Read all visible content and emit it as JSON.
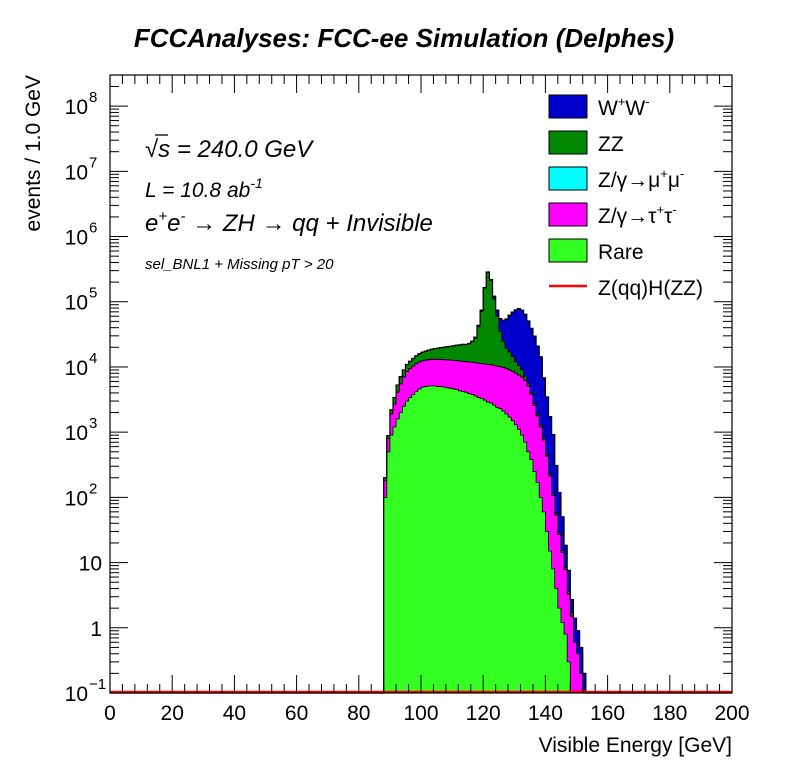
{
  "chart_data": {
    "type": "area",
    "title": "FCCAnalyses: FCC-ee Simulation (Delphes)",
    "xlabel": "Visible Energy [GeV]",
    "ylabel": "events / 1.0 GeV",
    "xlim": [
      0,
      200
    ],
    "ylim": [
      0.1,
      300000000
    ],
    "yscale": "log",
    "stacked": true,
    "legend_position": "top-right",
    "x_ticks": [
      "0",
      "20",
      "40",
      "60",
      "80",
      "100",
      "120",
      "140",
      "160",
      "180",
      "200"
    ],
    "y_ticks": [
      {
        "base": "10",
        "exp": "−1",
        "value": 0.1
      },
      {
        "base": "1",
        "exp": "",
        "value": 1
      },
      {
        "base": "10",
        "exp": "",
        "value": 10
      },
      {
        "base": "10",
        "exp": "2",
        "value": 100
      },
      {
        "base": "10",
        "exp": "3",
        "value": 1000
      },
      {
        "base": "10",
        "exp": "4",
        "value": 10000
      },
      {
        "base": "10",
        "exp": "5",
        "value": 100000
      },
      {
        "base": "10",
        "exp": "6",
        "value": 1000000
      },
      {
        "base": "10",
        "exp": "7",
        "value": 10000000
      },
      {
        "base": "10",
        "exp": "8",
        "value": 100000000
      }
    ],
    "annotations": {
      "sqrts_symbol": "√",
      "sqrts_s": "s",
      "sqrts_text": " = 240.0 GeV",
      "lumi_text": "L = 10.8 ab",
      "lumi_exp": "-1",
      "process_e1": "e",
      "process_sup1": "+",
      "process_e2": "e",
      "process_sup2": "-",
      "process_rest": " → ZH → qq + Invisible",
      "selection": "sel_BNL1 + Missing pT > 20"
    },
    "x": [
      88,
      89,
      90,
      91,
      92,
      93,
      94,
      95,
      96,
      97,
      98,
      99,
      100,
      101,
      102,
      103,
      104,
      105,
      106,
      107,
      108,
      109,
      110,
      111,
      112,
      113,
      114,
      115,
      116,
      117,
      118,
      119,
      120,
      121,
      122,
      123,
      124,
      125,
      126,
      127,
      128,
      129,
      130,
      131,
      132,
      133,
      134,
      135,
      136,
      137,
      138,
      139,
      140,
      141,
      142,
      143,
      144,
      145,
      146,
      147,
      148,
      149,
      150,
      151,
      152
    ],
    "series": [
      {
        "name": "Rare",
        "color": "#33ff22",
        "values": [
          100,
          500,
          900,
          1200,
          1600,
          2000,
          2500,
          3000,
          3400,
          3800,
          4200,
          4600,
          4900,
          5000,
          5100,
          5100,
          5100,
          5000,
          5000,
          4900,
          4800,
          4700,
          4600,
          4500,
          4300,
          4200,
          4100,
          3900,
          3800,
          3600,
          3400,
          3300,
          3100,
          2900,
          2800,
          2600,
          2400,
          2300,
          2100,
          1900,
          1700,
          1500,
          1300,
          1100,
          900,
          700,
          500,
          380,
          250,
          170,
          100,
          60,
          30,
          15,
          8,
          4,
          2,
          1.2,
          0.8,
          0.3,
          0,
          0,
          0,
          0,
          0
        ]
      },
      {
        "name": "Z/γ→τ⁺τ⁻",
        "color": "#ff00ff",
        "values": [
          80,
          300,
          1000,
          1500,
          2500,
          3500,
          4500,
          5500,
          6000,
          6500,
          7000,
          7300,
          7500,
          7700,
          7800,
          8000,
          8000,
          8000,
          8000,
          8000,
          8000,
          8000,
          8000,
          8000,
          8000,
          8000,
          8000,
          8000,
          8000,
          8000,
          8000,
          8000,
          8000,
          8000,
          8000,
          8000,
          7900,
          7800,
          7700,
          7500,
          7300,
          7000,
          6700,
          6400,
          6100,
          5500,
          4600,
          3400,
          2300,
          1600,
          1100,
          700,
          400,
          200,
          100,
          50,
          25,
          13,
          7,
          3,
          1.5,
          0.6,
          0.4,
          0.2,
          0.1
        ]
      },
      {
        "name": "Z/γ→μ⁺μ⁻",
        "color": "#00ffff",
        "values": [
          0,
          0,
          0,
          0,
          0,
          0,
          0,
          0,
          0,
          0,
          0,
          0,
          0,
          0,
          0,
          0,
          0,
          0,
          0,
          0,
          0,
          0,
          0,
          0,
          0,
          0,
          0,
          0,
          0,
          0,
          0,
          0,
          0,
          0,
          0,
          0,
          0,
          0,
          0,
          0,
          0,
          0,
          0,
          0,
          0,
          0,
          0,
          0,
          0,
          0,
          0,
          0,
          0,
          0,
          0,
          0,
          0,
          0,
          0,
          0,
          0,
          0,
          0,
          0,
          0
        ]
      },
      {
        "name": "ZZ",
        "color": "#008800",
        "values": [
          20,
          80,
          300,
          700,
          1200,
          1600,
          2000,
          2400,
          2800,
          3200,
          3600,
          4000,
          4400,
          4800,
          5200,
          5600,
          6000,
          6400,
          6800,
          7200,
          7600,
          8000,
          8500,
          9000,
          9500,
          10000,
          10000,
          11000,
          13000,
          16000,
          30000,
          60000,
          150000,
          270000,
          200000,
          100000,
          50000,
          25000,
          15000,
          10000,
          8000,
          6000,
          4000,
          3000,
          2000,
          1000,
          500,
          300,
          200,
          150,
          100,
          60,
          30,
          15,
          8,
          4,
          2,
          1,
          0.6,
          0.3,
          0.2,
          0,
          0,
          0,
          0
        ]
      },
      {
        "name": "W⁺W⁻",
        "color": "#0000cc",
        "values": [
          0,
          0,
          0,
          0,
          0,
          0,
          0,
          0,
          0,
          0,
          0,
          0,
          0,
          0,
          0,
          0,
          0,
          0,
          0,
          0,
          0,
          0,
          0,
          0,
          0,
          0,
          0,
          0,
          0,
          1000,
          2000,
          3000,
          4000,
          5000,
          8000,
          11000,
          14000,
          20000,
          27000,
          35000,
          45000,
          55000,
          63000,
          68000,
          65000,
          57000,
          45000,
          35000,
          27000,
          19000,
          13000,
          6000,
          3000,
          1500,
          800,
          250,
          90,
          35,
          10,
          4,
          1,
          0.8,
          0.5,
          0.3,
          0.1
        ]
      },
      {
        "name": "Z(qq)H(ZZ)",
        "color": "#ff0000",
        "values": [
          0.1,
          0.1,
          0.1,
          0.1,
          0.1,
          0.1,
          0.1,
          0.1,
          0.1,
          0.1,
          0.1,
          0.1,
          0.1,
          0.1,
          0.1,
          0.1,
          0.1,
          0.1,
          0.1,
          0.1,
          0.1,
          0.1,
          0.1,
          0.1,
          0.1,
          0.1,
          0.1,
          0.1,
          0.1,
          0.1,
          0.1,
          0.1,
          0.1,
          0.1,
          0.1,
          0.1,
          0.1,
          0.1,
          0.1,
          0.1,
          0.1,
          0.1,
          0.1,
          0.1,
          0.1,
          0.1,
          0.1,
          0.1,
          0.1,
          0.1,
          0.1,
          0.1,
          0.1,
          0.1,
          0.1,
          0.1,
          0.1,
          0.1,
          0.1,
          0.1,
          0.1,
          0.1,
          0.1,
          0.1,
          0.1
        ]
      }
    ],
    "legend": [
      {
        "label": "W",
        "sup1": "+",
        "mid": "W",
        "sup2": "-",
        "color": "#0000cc",
        "kind": "box"
      },
      {
        "label": "ZZ",
        "color": "#008800",
        "kind": "box"
      },
      {
        "label": "Z/γ→μ",
        "sup1": "+",
        "mid": "μ",
        "sup2": "-",
        "color": "#00ffff",
        "kind": "box"
      },
      {
        "label": "Z/γ→τ",
        "sup1": "+",
        "mid": "τ",
        "sup2": "-",
        "color": "#ff00ff",
        "kind": "box"
      },
      {
        "label": "Rare",
        "color": "#33ff22",
        "kind": "box"
      },
      {
        "label": "Z(qq)H(ZZ)",
        "color": "#ff0000",
        "kind": "line"
      }
    ]
  }
}
